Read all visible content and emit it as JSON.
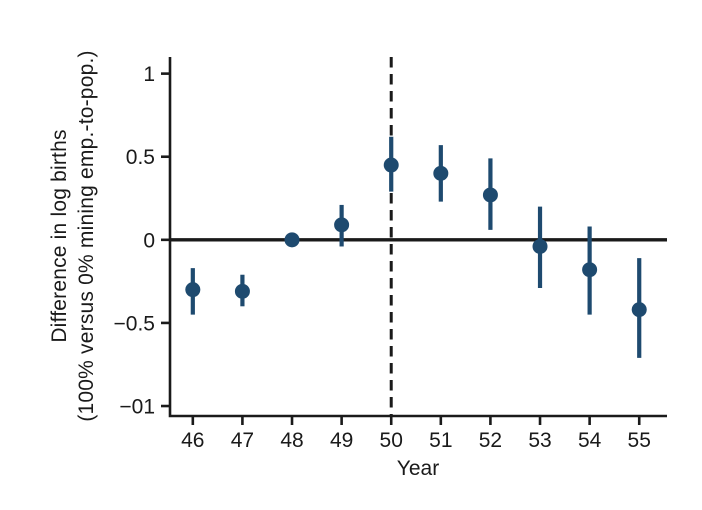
{
  "figure": {
    "background_color": "#ffffff",
    "axis_color": "#1a1a1a",
    "marker_color": "#1e4a6f"
  },
  "chart_data": {
    "type": "scatter",
    "subtype": "point-estimates-with-ci-errorbars",
    "title": "",
    "xlabel": "Year",
    "ylabel_line1": "Difference in log births",
    "ylabel_line2": "(100% versus 0% mining emp.-to-pop.)",
    "x_values": [
      46,
      47,
      48,
      49,
      50,
      51,
      52,
      53,
      54,
      55
    ],
    "x_tick_labels": [
      "46",
      "47",
      "48",
      "49",
      "50",
      "51",
      "52",
      "53",
      "54",
      "55"
    ],
    "series": [
      {
        "name": "point-estimate",
        "estimates": [
          -0.3,
          -0.31,
          0.0,
          0.09,
          0.45,
          0.4,
          0.27,
          -0.04,
          -0.18,
          -0.42
        ],
        "ci_low": [
          -0.45,
          -0.4,
          0.0,
          -0.04,
          0.29,
          0.23,
          0.06,
          -0.29,
          -0.45,
          -0.71
        ],
        "ci_high": [
          -0.17,
          -0.21,
          0.0,
          0.21,
          0.62,
          0.57,
          0.49,
          0.2,
          0.08,
          -0.11
        ]
      }
    ],
    "y_ticks": [
      {
        "label": "1",
        "value": 1
      },
      {
        "label": "0.5",
        "value": 0.5
      },
      {
        "label": "0",
        "value": 0
      },
      {
        "label": "−0.5",
        "value": -0.5
      },
      {
        "label": "−01",
        "value": -1
      }
    ],
    "ylim": [
      -1.06,
      1.1
    ],
    "xlim": [
      45.54,
      55.56
    ],
    "reference_hline_y": 0,
    "dashed_vline_x": 50,
    "grid": "off",
    "legend": "none",
    "marker_color": "#1e4a6f",
    "axis_color": "#1a1a1a"
  }
}
